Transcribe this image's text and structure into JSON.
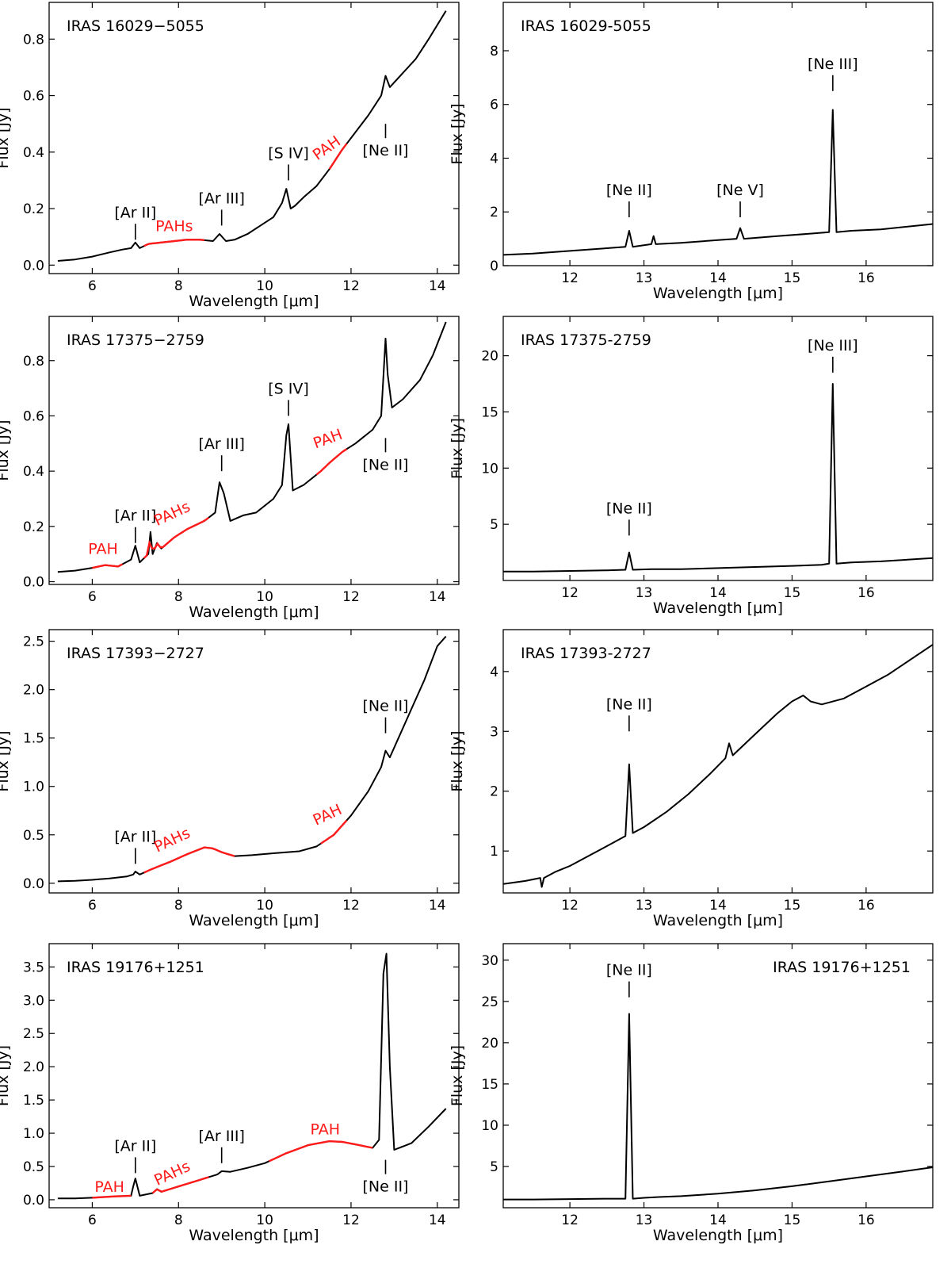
{
  "chart_data": [
    {
      "type": "line",
      "title": "IRAS 16029−5055",
      "xlabel": "Wavelength [μm]",
      "ylabel": "Flux [Jy]",
      "xlim": [
        5.0,
        14.5
      ],
      "ylim": [
        -0.03,
        0.93
      ],
      "xticks": [
        6,
        8,
        10,
        12,
        14
      ],
      "yticks": [
        0.0,
        0.2,
        0.4,
        0.6,
        0.8
      ],
      "ydec": 1,
      "title_pos": "top-left",
      "series": [
        {
          "x": [
            5.2,
            5.6,
            6.0,
            6.4,
            6.7,
            6.9,
            7.0,
            7.1,
            7.3,
            7.6,
            7.9,
            8.2,
            8.5,
            8.8,
            8.95,
            9.1,
            9.3,
            9.6,
            9.9,
            10.2,
            10.4,
            10.5,
            10.6,
            10.7,
            10.9,
            11.2,
            11.5,
            11.8,
            12.1,
            12.4,
            12.7,
            12.8,
            12.9,
            13.2,
            13.5,
            13.8,
            14.0,
            14.2
          ],
          "y": [
            0.015,
            0.02,
            0.03,
            0.045,
            0.055,
            0.06,
            0.08,
            0.06,
            0.075,
            0.08,
            0.085,
            0.09,
            0.09,
            0.085,
            0.11,
            0.085,
            0.09,
            0.11,
            0.14,
            0.17,
            0.22,
            0.27,
            0.2,
            0.21,
            0.24,
            0.28,
            0.34,
            0.41,
            0.47,
            0.53,
            0.6,
            0.67,
            0.63,
            0.68,
            0.73,
            0.8,
            0.85,
            0.9
          ]
        }
      ],
      "red_ranges": [
        [
          7.2,
          8.6
        ],
        [
          11.5,
          11.9
        ]
      ],
      "annotations": [
        {
          "text": "[Ar II]",
          "x": 7.0,
          "y": 0.09,
          "color": "black"
        },
        {
          "text": "[Ar III]",
          "x": 9.0,
          "y": 0.14,
          "color": "black"
        },
        {
          "text": "[S IV]",
          "x": 10.55,
          "y": 0.3,
          "color": "black"
        },
        {
          "text": "[Ne II]",
          "x": 12.8,
          "y": 0.5,
          "color": "black",
          "below": true
        },
        {
          "text": "PAHs",
          "x": 7.9,
          "y": 0.12,
          "color": "red",
          "nomark": true
        },
        {
          "text": "PAH",
          "x": 11.5,
          "y": 0.4,
          "color": "red",
          "nomark": true,
          "rotate": -35
        }
      ]
    },
    {
      "type": "line",
      "title": "IRAS 16029-5055",
      "xlabel": "Wavelength [μm]",
      "ylabel": "Flux [Jy]",
      "xlim": [
        11.1,
        16.9
      ],
      "ylim": [
        0,
        9.8
      ],
      "xticks": [
        12,
        13,
        14,
        15,
        16
      ],
      "yticks": [
        0,
        2,
        4,
        6,
        8
      ],
      "ydec": 0,
      "title_pos": "top-left",
      "series": [
        {
          "x": [
            11.1,
            11.5,
            12.0,
            12.5,
            12.75,
            12.8,
            12.85,
            13.1,
            13.13,
            13.16,
            13.5,
            14.0,
            14.25,
            14.3,
            14.35,
            14.8,
            15.3,
            15.5,
            15.55,
            15.6,
            15.8,
            16.2,
            16.9
          ],
          "y": [
            0.4,
            0.45,
            0.55,
            0.65,
            0.7,
            1.3,
            0.7,
            0.8,
            1.1,
            0.8,
            0.85,
            0.95,
            1.0,
            1.4,
            1.0,
            1.1,
            1.2,
            1.25,
            5.8,
            1.25,
            1.3,
            1.35,
            1.55
          ]
        }
      ],
      "red_ranges": [],
      "annotations": [
        {
          "text": "[Ne II]",
          "x": 12.8,
          "y": 1.8,
          "color": "black"
        },
        {
          "text": "[Ne V]",
          "x": 14.3,
          "y": 1.8,
          "color": "black"
        },
        {
          "text": "[Ne III]",
          "x": 15.55,
          "y": 6.5,
          "color": "black"
        }
      ]
    },
    {
      "type": "line",
      "title": "IRAS 17375−2759",
      "xlabel": "Wavelength [μm]",
      "ylabel": "Flux [Jy]",
      "xlim": [
        5.0,
        14.5
      ],
      "ylim": [
        -0.01,
        0.96
      ],
      "xticks": [
        6,
        8,
        10,
        12,
        14
      ],
      "yticks": [
        0.0,
        0.2,
        0.4,
        0.6,
        0.8
      ],
      "ydec": 1,
      "title_pos": "top-left",
      "series": [
        {
          "x": [
            5.2,
            5.6,
            6.0,
            6.3,
            6.6,
            6.9,
            7.0,
            7.1,
            7.3,
            7.35,
            7.4,
            7.5,
            7.6,
            7.9,
            8.2,
            8.6,
            8.85,
            8.95,
            9.05,
            9.2,
            9.5,
            9.8,
            10.2,
            10.4,
            10.5,
            10.55,
            10.65,
            10.9,
            11.3,
            11.5,
            11.8,
            12.1,
            12.5,
            12.7,
            12.8,
            12.85,
            12.95,
            13.2,
            13.6,
            13.9,
            14.2
          ],
          "y": [
            0.035,
            0.04,
            0.05,
            0.06,
            0.055,
            0.08,
            0.13,
            0.07,
            0.1,
            0.18,
            0.1,
            0.14,
            0.12,
            0.16,
            0.19,
            0.22,
            0.25,
            0.36,
            0.32,
            0.22,
            0.24,
            0.25,
            0.3,
            0.35,
            0.53,
            0.57,
            0.33,
            0.35,
            0.4,
            0.43,
            0.47,
            0.5,
            0.55,
            0.6,
            0.88,
            0.75,
            0.63,
            0.66,
            0.73,
            0.82,
            0.94
          ]
        }
      ],
      "red_ranges": [
        [
          6.0,
          6.7
        ],
        [
          7.2,
          8.7
        ],
        [
          11.2,
          11.9
        ]
      ],
      "annotations": [
        {
          "text": "[Ar II]",
          "x": 7.0,
          "y": 0.14,
          "color": "black"
        },
        {
          "text": "[Ar III]",
          "x": 9.0,
          "y": 0.4,
          "color": "black"
        },
        {
          "text": "[S IV]",
          "x": 10.55,
          "y": 0.6,
          "color": "black"
        },
        {
          "text": "[Ne II]",
          "x": 12.8,
          "y": 0.52,
          "color": "black",
          "below": true
        },
        {
          "text": "PAH",
          "x": 6.25,
          "y": 0.1,
          "color": "red",
          "nomark": true
        },
        {
          "text": "PAHs",
          "x": 7.9,
          "y": 0.23,
          "color": "red",
          "nomark": true,
          "rotate": -25
        },
        {
          "text": "PAH",
          "x": 11.5,
          "y": 0.5,
          "color": "red",
          "nomark": true,
          "rotate": -20
        }
      ]
    },
    {
      "type": "line",
      "title": "IRAS 17375-2759",
      "xlabel": "Wavelength [μm]",
      "ylabel": "Flux [Jy]",
      "xlim": [
        11.1,
        16.9
      ],
      "ylim": [
        0,
        23.5
      ],
      "xticks": [
        12,
        13,
        14,
        15,
        16
      ],
      "yticks": [
        5,
        10,
        15,
        20
      ],
      "ydec": 0,
      "title_pos": "top-left",
      "series": [
        {
          "x": [
            11.1,
            11.5,
            12.0,
            12.5,
            12.75,
            12.8,
            12.85,
            13.1,
            13.5,
            14.0,
            14.5,
            15.0,
            15.4,
            15.5,
            15.55,
            15.6,
            15.8,
            16.2,
            16.9
          ],
          "y": [
            0.8,
            0.8,
            0.85,
            0.9,
            0.95,
            2.5,
            0.95,
            1.0,
            1.0,
            1.1,
            1.2,
            1.3,
            1.4,
            1.5,
            17.5,
            1.5,
            1.6,
            1.7,
            2.0
          ]
        }
      ],
      "red_ranges": [],
      "annotations": [
        {
          "text": "[Ne II]",
          "x": 12.8,
          "y": 4.0,
          "color": "black"
        },
        {
          "text": "[Ne III]",
          "x": 15.55,
          "y": 18.5,
          "color": "black"
        }
      ]
    },
    {
      "type": "line",
      "title": "IRAS 17393−2727",
      "xlabel": "Wavelength [μm]",
      "ylabel": "Flux [Jy]",
      "xlim": [
        5.0,
        14.5
      ],
      "ylim": [
        -0.1,
        2.62
      ],
      "xticks": [
        6,
        8,
        10,
        12,
        14
      ],
      "yticks": [
        0.0,
        0.5,
        1.0,
        1.5,
        2.0,
        2.5
      ],
      "ydec": 1,
      "title_pos": "top-left",
      "series": [
        {
          "x": [
            5.2,
            5.6,
            6.0,
            6.4,
            6.8,
            6.95,
            7.0,
            7.1,
            7.4,
            7.8,
            8.2,
            8.6,
            8.8,
            9.0,
            9.3,
            9.7,
            10.2,
            10.8,
            11.2,
            11.6,
            12.0,
            12.4,
            12.7,
            12.8,
            12.9,
            13.1,
            13.4,
            13.7,
            14.0,
            14.2
          ],
          "y": [
            0.02,
            0.025,
            0.035,
            0.05,
            0.07,
            0.09,
            0.12,
            0.09,
            0.15,
            0.22,
            0.3,
            0.37,
            0.36,
            0.32,
            0.28,
            0.29,
            0.31,
            0.33,
            0.38,
            0.5,
            0.7,
            0.95,
            1.2,
            1.37,
            1.3,
            1.5,
            1.8,
            2.1,
            2.45,
            2.55
          ]
        }
      ],
      "red_ranges": [
        [
          7.2,
          9.3
        ],
        [
          11.3,
          11.9
        ]
      ],
      "annotations": [
        {
          "text": "[Ar II]",
          "x": 7.0,
          "y": 0.2,
          "color": "black"
        },
        {
          "text": "[Ne II]",
          "x": 12.8,
          "y": 1.55,
          "color": "black"
        },
        {
          "text": "PAHs",
          "x": 7.9,
          "y": 0.4,
          "color": "red",
          "nomark": true,
          "rotate": -25
        },
        {
          "text": "PAH",
          "x": 11.5,
          "y": 0.66,
          "color": "red",
          "nomark": true,
          "rotate": -25
        }
      ]
    },
    {
      "type": "line",
      "title": "IRAS 17393-2727",
      "xlabel": "Wavelength [μm]",
      "ylabel": "Flux [Jy]",
      "xlim": [
        11.1,
        16.9
      ],
      "ylim": [
        0.3,
        4.7
      ],
      "xticks": [
        12,
        13,
        14,
        15,
        16
      ],
      "yticks": [
        1,
        2,
        3,
        4
      ],
      "ydec": 0,
      "title_pos": "top-left",
      "series": [
        {
          "x": [
            11.1,
            11.4,
            11.6,
            11.62,
            11.65,
            11.8,
            12.0,
            12.3,
            12.6,
            12.75,
            12.8,
            12.85,
            13.0,
            13.3,
            13.6,
            13.9,
            14.1,
            14.15,
            14.2,
            14.5,
            14.8,
            15.0,
            15.15,
            15.25,
            15.4,
            15.7,
            16.0,
            16.3,
            16.6,
            16.9
          ],
          "y": [
            0.45,
            0.5,
            0.55,
            0.4,
            0.55,
            0.65,
            0.75,
            0.95,
            1.15,
            1.25,
            2.45,
            1.3,
            1.4,
            1.65,
            1.95,
            2.3,
            2.55,
            2.8,
            2.6,
            2.95,
            3.3,
            3.5,
            3.6,
            3.5,
            3.45,
            3.55,
            3.75,
            3.95,
            4.2,
            4.45
          ]
        }
      ],
      "red_ranges": [],
      "annotations": [
        {
          "text": "[Ne II]",
          "x": 12.8,
          "y": 3.0,
          "color": "black"
        }
      ]
    },
    {
      "type": "line",
      "title": "IRAS 19176+1251",
      "xlabel": "Wavelength [μm]",
      "ylabel": "Flux [Jy]",
      "xlim": [
        5.0,
        14.5
      ],
      "ylim": [
        -0.12,
        3.85
      ],
      "xticks": [
        6,
        8,
        10,
        12,
        14
      ],
      "yticks": [
        0.0,
        0.5,
        1.0,
        1.5,
        2.0,
        2.5,
        3.0,
        3.5
      ],
      "ydec": 1,
      "title_pos": "top-left",
      "series": [
        {
          "x": [
            5.2,
            5.6,
            6.0,
            6.5,
            6.9,
            6.95,
            7.0,
            7.1,
            7.4,
            7.5,
            7.6,
            8.0,
            8.5,
            8.9,
            9.0,
            9.2,
            9.6,
            10.0,
            10.5,
            11.0,
            11.5,
            11.8,
            12.2,
            12.5,
            12.65,
            12.75,
            12.82,
            12.9,
            13.0,
            13.4,
            13.8,
            14.2
          ],
          "y": [
            0.02,
            0.02,
            0.03,
            0.05,
            0.06,
            0.2,
            0.32,
            0.06,
            0.1,
            0.16,
            0.12,
            0.2,
            0.3,
            0.38,
            0.43,
            0.42,
            0.48,
            0.55,
            0.7,
            0.82,
            0.88,
            0.87,
            0.82,
            0.78,
            0.9,
            3.4,
            3.7,
            2.0,
            0.75,
            0.85,
            1.1,
            1.37
          ]
        }
      ],
      "red_ranges": [
        [
          6.0,
          6.9
        ],
        [
          7.4,
          8.7
        ],
        [
          10.1,
          12.5
        ]
      ],
      "annotations": [
        {
          "text": "[Ar II]",
          "x": 7.0,
          "y": 0.4,
          "color": "black"
        },
        {
          "text": "[Ar III]",
          "x": 9.0,
          "y": 0.55,
          "color": "black"
        },
        {
          "text": "[Ne II]",
          "x": 12.8,
          "y": 0.6,
          "color": "black",
          "below": true
        },
        {
          "text": "PAH",
          "x": 6.4,
          "y": 0.12,
          "color": "red",
          "nomark": true
        },
        {
          "text": "PAHs",
          "x": 7.9,
          "y": 0.33,
          "color": "red",
          "nomark": true,
          "rotate": -25
        },
        {
          "text": "PAH",
          "x": 11.4,
          "y": 0.98,
          "color": "red",
          "nomark": true
        }
      ]
    },
    {
      "type": "line",
      "title": "IRAS 19176+1251",
      "xlabel": "Wavelength [μm]",
      "ylabel": "Flux [Jy]",
      "xlim": [
        11.1,
        16.9
      ],
      "ylim": [
        0,
        32
      ],
      "xticks": [
        12,
        13,
        14,
        15,
        16
      ],
      "yticks": [
        5,
        10,
        15,
        20,
        25,
        30
      ],
      "ydec": 0,
      "title_pos": "top-right",
      "series": [
        {
          "x": [
            11.1,
            11.5,
            12.0,
            12.5,
            12.75,
            12.8,
            12.85,
            13.0,
            13.2,
            13.5,
            14.0,
            14.5,
            15.0,
            15.5,
            16.0,
            16.5,
            16.9
          ],
          "y": [
            1.0,
            1.0,
            1.05,
            1.1,
            1.1,
            23.5,
            1.1,
            1.2,
            1.3,
            1.4,
            1.7,
            2.1,
            2.6,
            3.2,
            3.8,
            4.4,
            4.9
          ]
        }
      ],
      "red_ranges": [],
      "annotations": [
        {
          "text": "[Ne II]",
          "x": 12.8,
          "y": 25.5,
          "color": "black"
        }
      ]
    }
  ]
}
